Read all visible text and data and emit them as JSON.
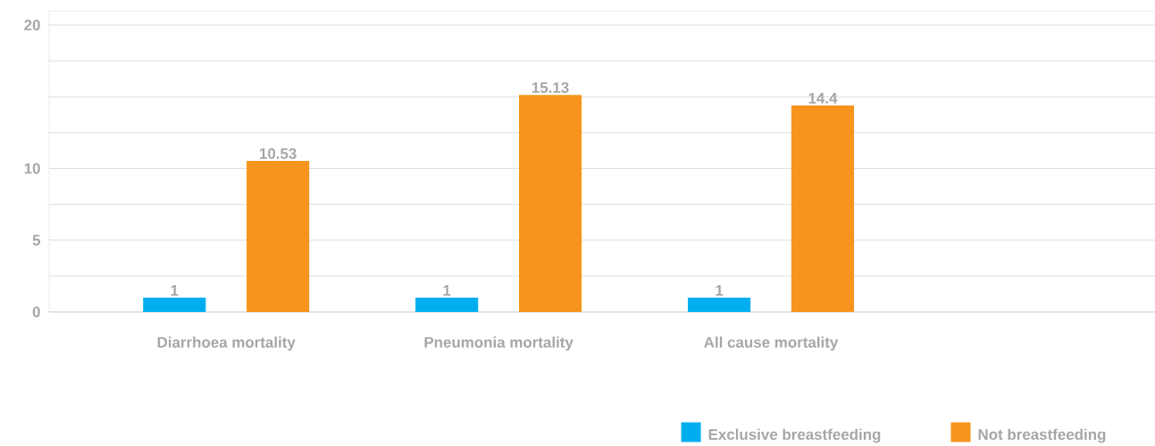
{
  "chart_data": {
    "type": "bar",
    "categories": [
      "Diarrhoea mortality",
      "Pneumonia mortality",
      "All cause mortality"
    ],
    "series": [
      {
        "name": "Exclusive breastfeeding",
        "color": "#00aeef",
        "values": [
          1,
          1,
          1
        ]
      },
      {
        "name": "Not breastfeeding",
        "color": "#f7941d",
        "values": [
          10.53,
          15.13,
          14.4
        ]
      }
    ],
    "ylim": [
      0,
      21
    ],
    "yticks": [
      0,
      {
        "value": 2.5,
        "label": null
      },
      5,
      {
        "value": 7.5,
        "label": null
      },
      10,
      {
        "value": 12.5,
        "label": null
      },
      {
        "value": 15,
        "label": null
      },
      {
        "value": 17.5,
        "label": null
      },
      20
    ],
    "data_labels": true,
    "grid": "y",
    "legend": "bottom right"
  }
}
